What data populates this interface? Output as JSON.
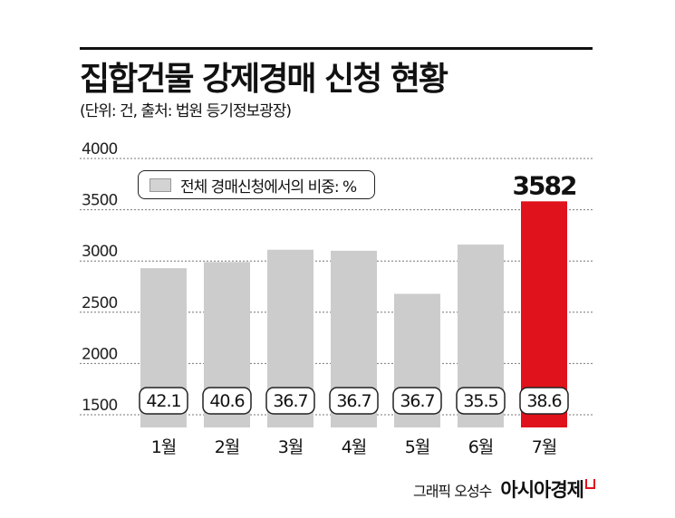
{
  "title": "집합건물 강제경매 신청 현황",
  "subtitle": "(단위: 건, 출처: 법원 등기정보광장)",
  "legend": {
    "label": "전체 경매신청에서의 비중: %"
  },
  "credit": "그래픽 오성수",
  "brand": "아시아경제",
  "colors": {
    "bar": "#cccccc",
    "highlight": "#e0121b",
    "text": "#111111"
  },
  "chart_data": {
    "type": "bar",
    "title": "집합건물 강제경매 신청 현황",
    "categories": [
      "1월",
      "2월",
      "3월",
      "4월",
      "5월",
      "6월",
      "7월"
    ],
    "values": [
      2930,
      2990,
      3110,
      3100,
      2680,
      3160,
      3582
    ],
    "share_labels": [
      "42.1",
      "40.6",
      "36.7",
      "36.7",
      "36.7",
      "35.5",
      "38.6"
    ],
    "highlight_index": 6,
    "highlight_value_label": "3582",
    "yticks": [
      1500,
      2000,
      2500,
      3000,
      3500,
      4000
    ],
    "ylim": [
      1500,
      4000
    ],
    "grid": "dotted horizontal"
  }
}
